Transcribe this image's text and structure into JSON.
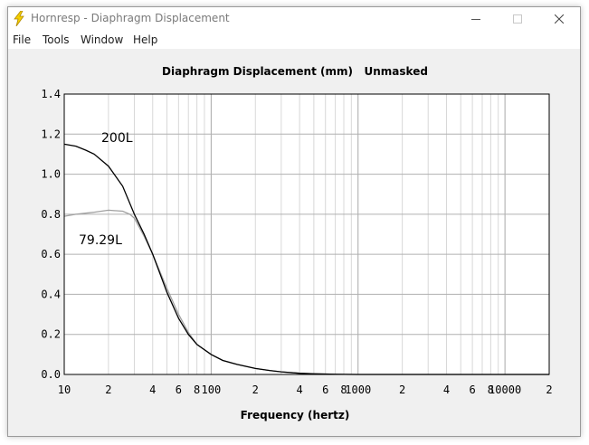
{
  "window": {
    "title": "Hornresp - Diaphragm Displacement",
    "controls": {
      "minimize": "minimize",
      "maximize": "maximize",
      "close": "close"
    }
  },
  "menu": {
    "items": [
      "File",
      "Tools",
      "Window",
      "Help"
    ]
  },
  "chart_data": {
    "type": "line",
    "title": "Diaphragm Displacement (mm)   Unmasked",
    "xlabel": "Frequency (hertz)",
    "ylabel": "",
    "xscale": "log",
    "xlim": [
      10,
      20000
    ],
    "ylim": [
      0,
      1.4
    ],
    "grid": true,
    "x_tick_labels": [
      "10",
      "2",
      "4",
      "6",
      "8",
      "100",
      "2",
      "4",
      "6",
      "8",
      "1000",
      "2",
      "4",
      "6",
      "8",
      "10000",
      "2"
    ],
    "y_tick_labels": [
      "0.0",
      "0.2",
      "0.4",
      "0.6",
      "0.8",
      "1.0",
      "1.2",
      "1.4"
    ],
    "annotations": [
      "200L",
      "79.29L"
    ],
    "series": [
      {
        "color": "#000000",
        "x": [
          10,
          12,
          14,
          16,
          20,
          25,
          30,
          35,
          40,
          45,
          50,
          60,
          70,
          80,
          100,
          120,
          150,
          200,
          250,
          300,
          400,
          500,
          700,
          1000,
          2000,
          5000,
          10000,
          20000
        ],
        "y": [
          1.15,
          1.14,
          1.12,
          1.1,
          1.04,
          0.94,
          0.8,
          0.7,
          0.6,
          0.5,
          0.41,
          0.28,
          0.2,
          0.15,
          0.1,
          0.07,
          0.05,
          0.03,
          0.02,
          0.013,
          0.006,
          0.003,
          0.001,
          0,
          0,
          0,
          0,
          0
        ]
      },
      {
        "color": "#a0a0a0",
        "x": [
          10,
          12,
          14,
          16,
          20,
          25,
          28,
          30,
          35,
          40,
          45,
          50,
          60,
          70,
          80,
          100,
          120,
          150,
          200,
          250,
          300,
          400,
          500,
          700,
          1000,
          2000,
          5000,
          10000,
          20000
        ],
        "y": [
          0.79,
          0.8,
          0.805,
          0.81,
          0.82,
          0.815,
          0.8,
          0.78,
          0.69,
          0.6,
          0.51,
          0.43,
          0.3,
          0.21,
          0.15,
          0.1,
          0.07,
          0.05,
          0.03,
          0.02,
          0.013,
          0.006,
          0.003,
          0.001,
          0,
          0,
          0,
          0,
          0
        ]
      }
    ]
  }
}
